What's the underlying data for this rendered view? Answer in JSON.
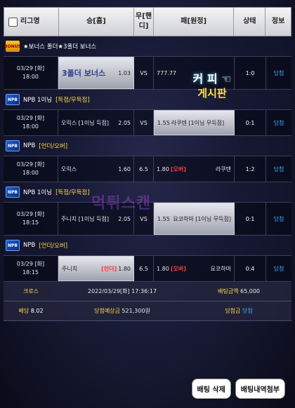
{
  "header": {
    "league": "리그명",
    "home": "승[홈]",
    "draw": "무[핸디]",
    "away": "패[원정]",
    "status": "상태",
    "info": "정보"
  },
  "sections": [
    {
      "flag": "BONUS",
      "league": "★보너스 폴더★3폴더 보너스",
      "tag": "",
      "date": "03/29 [화]",
      "time": "18:00",
      "home": "3폴더 보너스",
      "home_odds": "1.03",
      "draw": "VS",
      "away": "777.77",
      "away_odds": "",
      "score": "1:0",
      "info": "당첨"
    },
    {
      "flag": "NPB",
      "league": "NPB 1이닝",
      "tag": "[득점/무득점]",
      "date": "03/29 [화]",
      "time": "18:00",
      "home": "오릭스 [1이닝 득점]",
      "home_odds": "2.05",
      "draw": "VS",
      "away": "라쿠텐 [1이닝 무득점]",
      "away_odds": "1.55",
      "score": "0:1",
      "info": "당첨"
    },
    {
      "flag": "NPB",
      "league": "NPB",
      "tag": "[언더/오버]",
      "date": "03/29 [화]",
      "time": "18:00",
      "home": "오릭스",
      "home_odds": "1.60",
      "home_mark": "",
      "draw": "6.5",
      "away": "라쿠텐",
      "away_odds": "1.80",
      "away_mark": "[오버]",
      "score": "1:2",
      "info": "당첨"
    },
    {
      "flag": "NPB",
      "league": "NPB 1이닝",
      "tag": "[득점/무득점]",
      "date": "03/29 [화]",
      "time": "18:15",
      "home": "주니치 [1이닝 득점]",
      "home_odds": "2.05",
      "draw": "VS",
      "away": "요코하마 [1이닝 무득점]",
      "away_odds": "1.55",
      "score": "0:1",
      "info": "당첨"
    },
    {
      "flag": "NPB",
      "league": "NPB",
      "tag": "[언더/오버]",
      "date": "03/29 [화]",
      "time": "18:15",
      "home": "주니치",
      "home_odds": "1.80",
      "home_mark": "[언더]",
      "draw": "6.5",
      "away": "요코하마",
      "away_odds": "1.80",
      "away_mark": "[오버]",
      "score": "0:4",
      "info": "당첨"
    }
  ],
  "overlay": {
    "cafe_line1": "커 피 ☜",
    "cafe_line2": "게시판",
    "watermark": "먹튀스캔"
  },
  "summary": {
    "cross_label": "크로스",
    "timestamp": "2022/03/29[화] 17:36:17",
    "bet_amount_label": "배팅금액",
    "bet_amount": "65,000",
    "odds_label": "배당",
    "odds": "8.02",
    "expected_label": "당첨예상금",
    "expected": "521,300원",
    "win_label": "당첨금",
    "win_value": "당첨"
  },
  "buttons": {
    "delete": "배팅 삭제",
    "attach": "배팅내역첨부"
  }
}
